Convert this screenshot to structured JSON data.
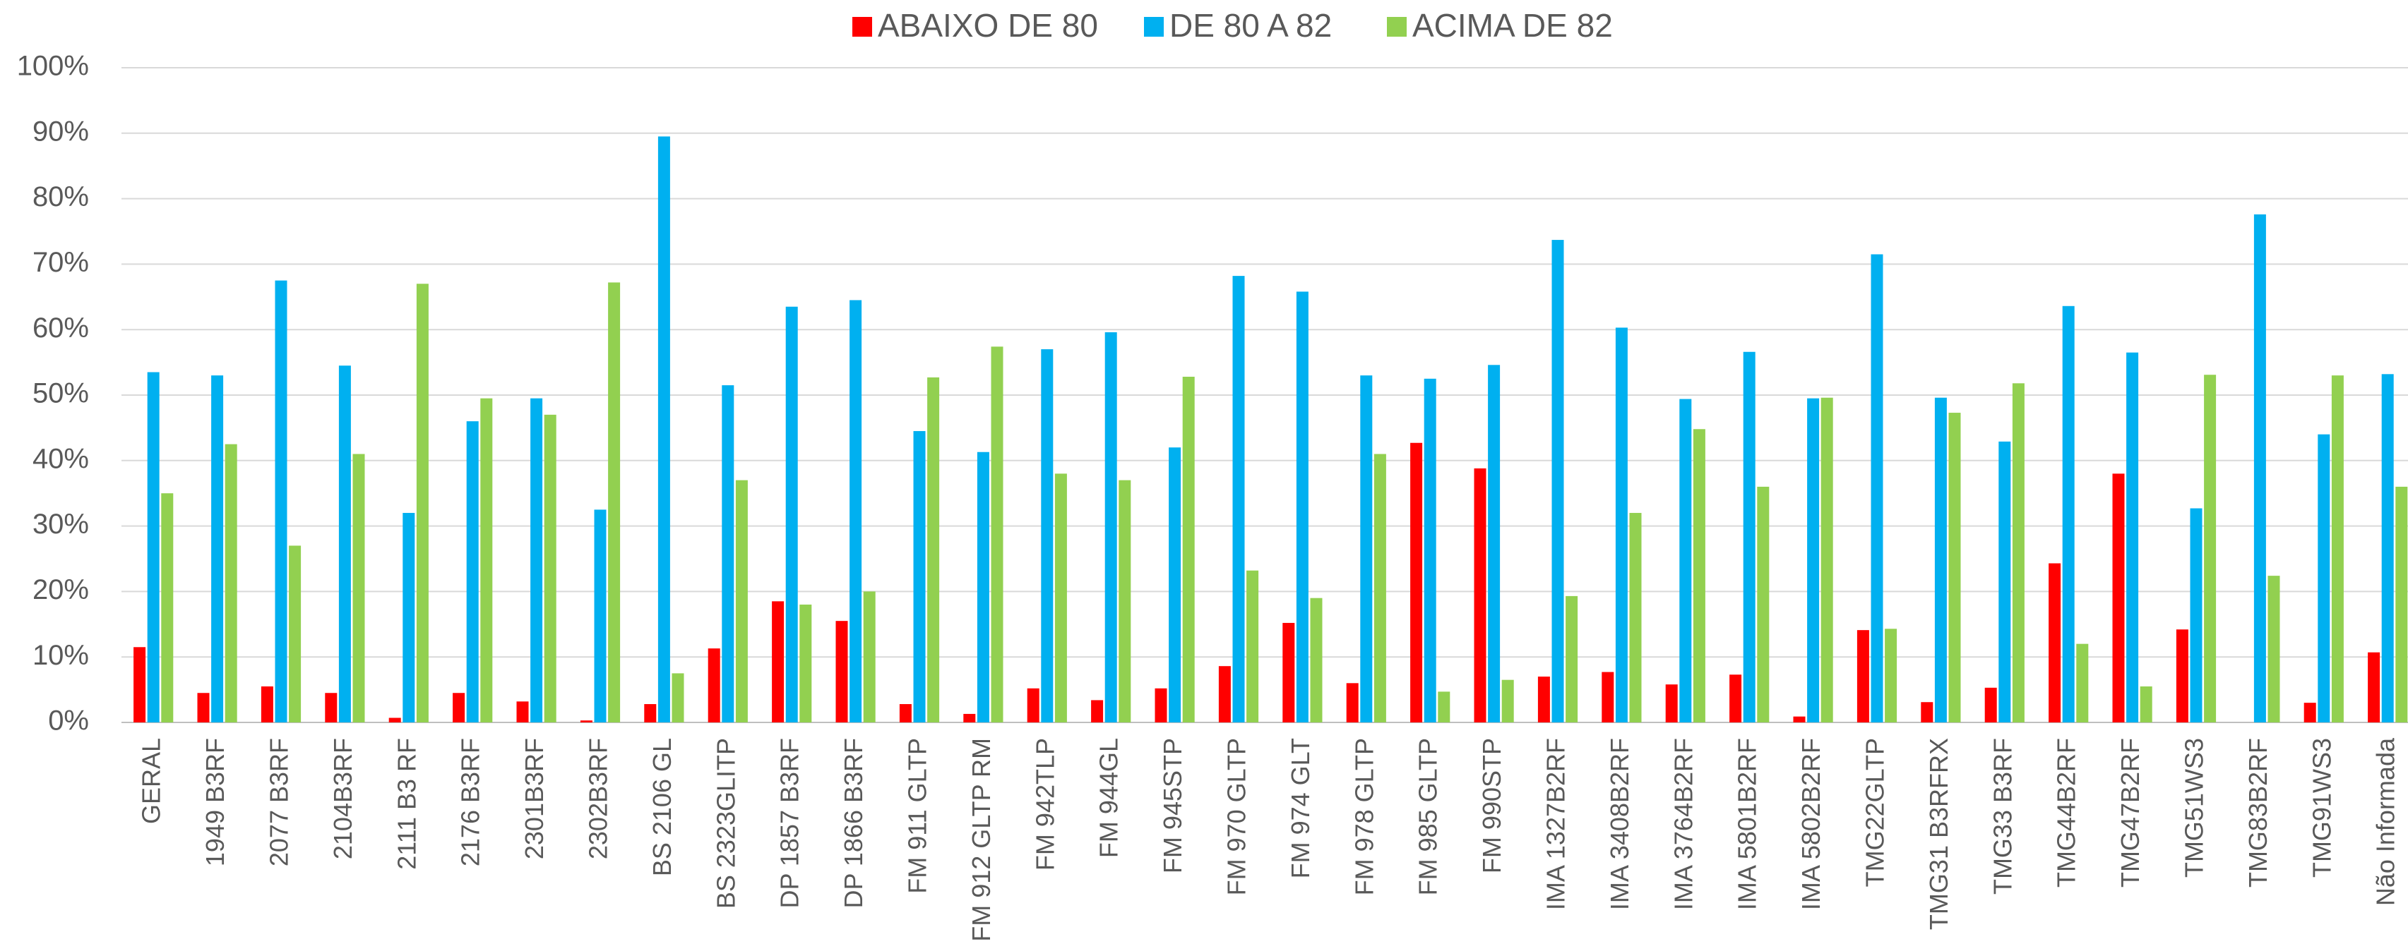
{
  "chart_data": {
    "type": "bar",
    "categories": [
      "GERAL",
      "1949 B3RF",
      "2077 B3RF",
      "2104B3RF",
      "2111 B3 RF",
      "2176 B3RF",
      "2301B3RF",
      "2302B3RF",
      "BS 2106 GL",
      "BS 2323GLITP",
      "DP 1857 B3RF",
      "DP 1866 B3RF",
      "FM 911 GLTP",
      "FM 912 GLTP RM",
      "FM 942TLP",
      "FM 944GL",
      "FM 945STP",
      "FM 970 GLTP",
      "FM 974 GLT",
      "FM 978 GLTP",
      "FM 985 GLTP",
      "FM 990STP",
      "IMA 1327B2RF",
      "IMA 3408B2RF",
      "IMA 3764B2RF",
      "IMA 5801B2RF",
      "IMA 5802B2RF",
      "TMG22GLTP",
      "TMG31 B3RFRX",
      "TMG33 B3RF",
      "TMG44B2RF",
      "TMG47B2RF",
      "TMG51WS3",
      "TMG83B2RF",
      "TMG91WS3",
      "Não Informada"
    ],
    "series": [
      {
        "name": "ABAIXO DE 80",
        "color": "#ff0000",
        "values": [
          11.5,
          4.5,
          5.5,
          4.5,
          0.7,
          4.5,
          3.2,
          0.3,
          2.8,
          11.3,
          18.5,
          15.5,
          2.8,
          1.3,
          5.2,
          3.4,
          5.2,
          8.6,
          15.2,
          6,
          42.7,
          38.8,
          7,
          7.7,
          5.8,
          7.3,
          0.9,
          14.1,
          3.1,
          5.3,
          24.3,
          38,
          14.2,
          0,
          3,
          10.7
        ]
      },
      {
        "name": "DE 80 A 82",
        "color": "#00b0f0",
        "values": [
          53.5,
          53,
          67.5,
          54.5,
          32,
          46,
          49.5,
          32.5,
          89.5,
          51.5,
          63.5,
          64.5,
          44.5,
          41.3,
          57,
          59.6,
          42,
          68.2,
          65.8,
          53,
          52.5,
          54.6,
          73.7,
          60.3,
          49.4,
          56.6,
          49.5,
          71.5,
          49.6,
          42.9,
          63.6,
          56.5,
          32.7,
          77.6,
          44,
          53.2
        ]
      },
      {
        "name": "ACIMA DE 82",
        "color": "#92d050",
        "values": [
          35,
          42.5,
          27,
          41,
          67,
          49.5,
          47,
          67.2,
          7.5,
          37,
          18,
          20,
          52.7,
          57.4,
          38,
          37,
          52.8,
          23.2,
          19,
          41,
          4.7,
          6.5,
          19.3,
          32,
          44.8,
          36,
          49.6,
          14.3,
          47.3,
          51.8,
          12,
          5.5,
          53.1,
          22.4,
          53,
          36
        ]
      }
    ],
    "ylim": [
      0,
      100
    ],
    "yticks": [
      {
        "value": 0,
        "label": "0%"
      },
      {
        "value": 10,
        "label": "10%"
      },
      {
        "value": 20,
        "label": "20%"
      },
      {
        "value": 30,
        "label": "30%"
      },
      {
        "value": 40,
        "label": "40%"
      },
      {
        "value": 50,
        "label": "50%"
      },
      {
        "value": 60,
        "label": "60%"
      },
      {
        "value": 70,
        "label": "70%"
      },
      {
        "value": 80,
        "label": "80%"
      },
      {
        "value": 90,
        "label": "90%"
      },
      {
        "value": 100,
        "label": "100%"
      }
    ],
    "grid": true,
    "legend": "top"
  }
}
